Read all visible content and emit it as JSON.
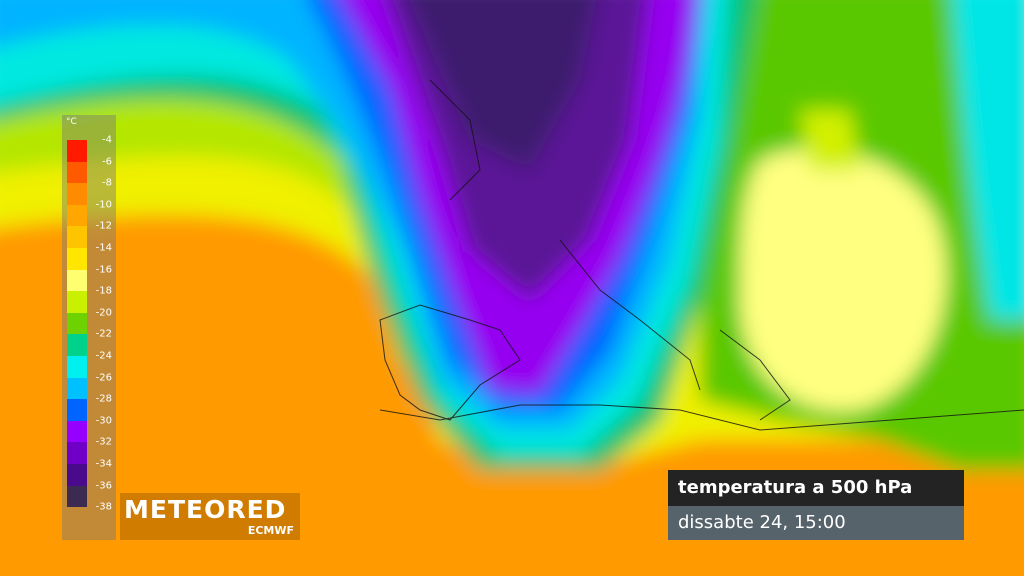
{
  "legend": {
    "unit": "°C",
    "ticks": [
      -4,
      -6,
      -8,
      -10,
      -12,
      -14,
      -16,
      -18,
      -20,
      -22,
      -24,
      -26,
      -28,
      -30,
      -32,
      -34,
      -36,
      -38
    ],
    "colors": [
      "#ff1a00",
      "#ff5a00",
      "#ff8c00",
      "#ffa600",
      "#ffc400",
      "#ffe600",
      "#ffff70",
      "#c8f000",
      "#6ed200",
      "#00d28c",
      "#00f0f0",
      "#00c0ff",
      "#0064ff",
      "#9600ff",
      "#7000c8",
      "#4a0a8c",
      "#3c2a50"
    ]
  },
  "brand": {
    "name": "METEORED",
    "source": "ECMWF"
  },
  "caption": {
    "title": "temperatura a 500 hPa",
    "time": "dissabte 24, 15:00"
  }
}
